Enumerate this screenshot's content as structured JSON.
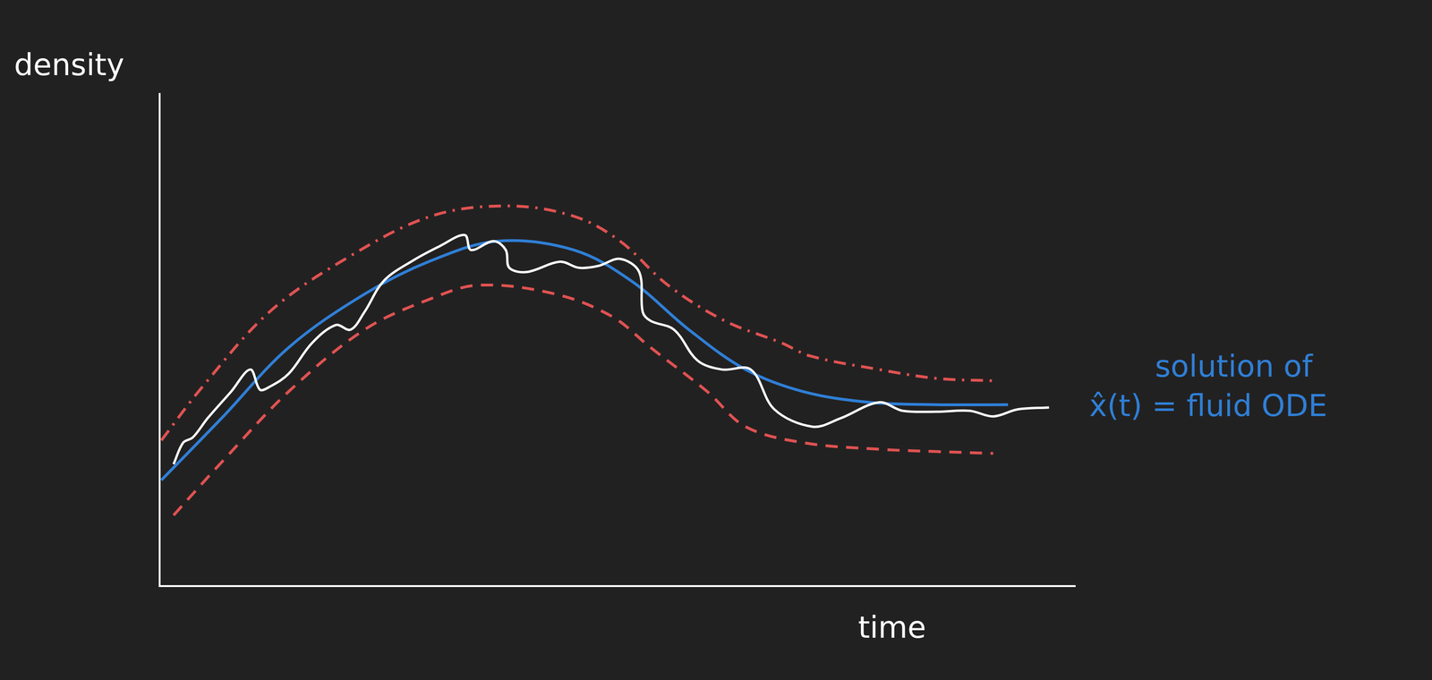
{
  "chart_data": {
    "type": "line",
    "x_label": "time",
    "y_label": "density",
    "xlim": [
      0,
      105
    ],
    "ylim": [
      0,
      105
    ],
    "xticks": [],
    "yticks": [],
    "grid": false,
    "tick_labels": false,
    "annotations": [
      {
        "text": "solution of",
        "color": "#2f7fd6"
      },
      {
        "text": "x̂(t) = fluid ODE",
        "color": "#2f7fd6"
      }
    ],
    "series": [
      {
        "color": "#ffffff",
        "line_style": "solid",
        "x": [
          1.6,
          2.7,
          3.8,
          5.5,
          8.2,
          10.4,
          11.5,
          12.6,
          14.8,
          17.5,
          20.2,
          21.9,
          23.5,
          25.7,
          29.0,
          32.2,
          35.0,
          35.7,
          38.3,
          39.7,
          40.1,
          42.1,
          45.9,
          48.1,
          50.3,
          52.8,
          55.0,
          55.4,
          56.3,
          59.0,
          61.7,
          64.5,
          67.8,
          70.5,
          74.9,
          78.1,
          82.5,
          85.2,
          89.1,
          92.9,
          95.6,
          98.4,
          102.0
        ],
        "values": [
          26.0,
          30.6,
          31.7,
          35.8,
          41.5,
          46.2,
          41.9,
          42.5,
          45.3,
          51.9,
          55.7,
          54.7,
          58.5,
          65.1,
          69.4,
          72.6,
          74.9,
          71.7,
          73.6,
          71.7,
          67.9,
          67.0,
          69.2,
          67.9,
          68.3,
          69.8,
          67.0,
          58.5,
          56.6,
          54.7,
          48.1,
          46.2,
          46.2,
          37.7,
          34.0,
          35.8,
          39.2,
          37.4,
          37.2,
          37.4,
          36.2,
          37.7,
          38.1
        ]
      },
      {
        "color": "#2f7fd6",
        "line_style": "solid",
        "x": [
          0.2,
          7.1,
          14.8,
          23.5,
          31.1,
          38.8,
          47.5,
          54.1,
          60.7,
          67.2,
          73.8,
          81.4,
          89.1,
          97.3
        ],
        "values": [
          22.6,
          35.8,
          50.9,
          62.3,
          69.4,
          73.6,
          71.7,
          65.1,
          54.7,
          46.2,
          41.5,
          39.2,
          38.7,
          38.7
        ]
      },
      {
        "color": "#e05252",
        "line_style": "dashdot",
        "x": [
          0.2,
          4.9,
          12.6,
          21.3,
          31.1,
          39.9,
          47.5,
          52.8,
          58.3,
          64.8,
          71.3,
          74.6,
          82.5,
          89.1,
          95.6
        ],
        "values": [
          31.1,
          42.5,
          58.5,
          69.8,
          78.9,
          81.1,
          78.9,
          73.6,
          64.2,
          56.6,
          51.9,
          49.1,
          46.2,
          44.3,
          43.8
        ]
      },
      {
        "color": "#e05252",
        "line_style": "dashed",
        "x": [
          1.6,
          7.1,
          14.8,
          23.5,
          31.1,
          36.6,
          45.4,
          51.9,
          56.3,
          62.8,
          67.2,
          73.8,
          82.5,
          89.1,
          95.6
        ],
        "values": [
          15.1,
          26.4,
          41.5,
          54.7,
          61.3,
          64.2,
          62.3,
          57.5,
          50.9,
          41.5,
          34.0,
          30.6,
          29.2,
          28.7,
          28.3
        ]
      }
    ]
  }
}
